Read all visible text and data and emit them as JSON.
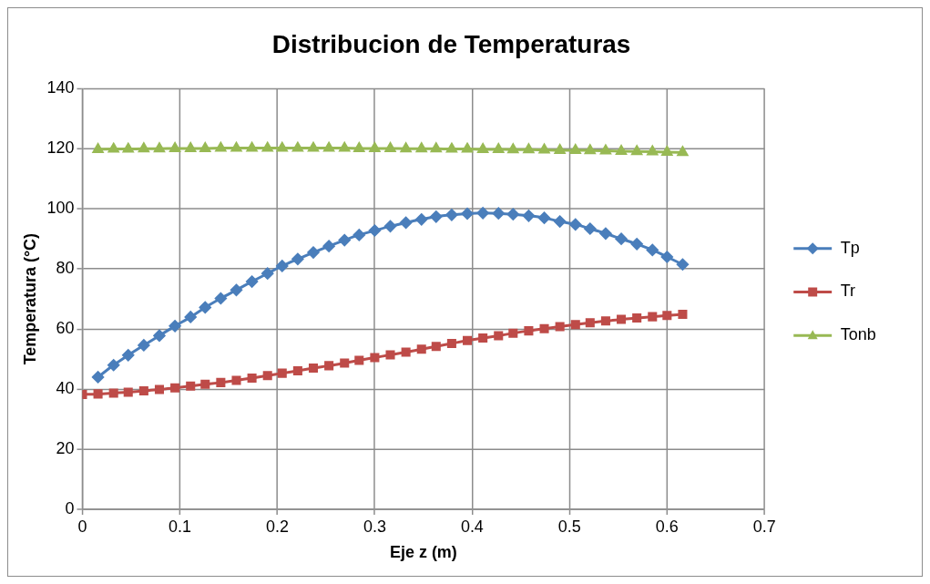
{
  "chart_data": {
    "type": "line",
    "title": "Distribucion de Temperaturas",
    "xlabel": "Eje z (m)",
    "ylabel": "Temperatura (°C)",
    "x": [
      0.016,
      0.032,
      0.047,
      0.063,
      0.079,
      0.095,
      0.111,
      0.126,
      0.142,
      0.158,
      0.174,
      0.19,
      0.205,
      0.221,
      0.237,
      0.253,
      0.269,
      0.284,
      0.3,
      0.316,
      0.332,
      0.348,
      0.363,
      0.379,
      0.395,
      0.411,
      0.427,
      0.442,
      0.458,
      0.474,
      0.49,
      0.506,
      0.521,
      0.537,
      0.553,
      0.569,
      0.585,
      0.6,
      0.616
    ],
    "series": [
      {
        "name": "Tp",
        "color": "#4a7ebb",
        "marker": "diamond",
        "values": [
          44,
          48,
          51.3,
          54.6,
          57.8,
          61,
          64,
          67.2,
          70.2,
          73,
          75.8,
          78.5,
          81,
          83.3,
          85.5,
          87.6,
          89.6,
          91.3,
          92.8,
          94.2,
          95.4,
          96.5,
          97.4,
          98,
          98.4,
          98.6,
          98.5,
          98.2,
          97.7,
          97,
          95.8,
          94.8,
          93.4,
          91.8,
          90,
          88.3,
          86.3,
          84,
          81.5
        ]
      },
      {
        "name": "Tr",
        "color": "#be4b48",
        "marker": "square",
        "x": [
          0,
          0.016,
          0.032,
          0.047,
          0.063,
          0.079,
          0.095,
          0.111,
          0.126,
          0.142,
          0.158,
          0.174,
          0.19,
          0.205,
          0.221,
          0.237,
          0.253,
          0.269,
          0.284,
          0.3,
          0.316,
          0.332,
          0.348,
          0.363,
          0.379,
          0.395,
          0.411,
          0.427,
          0.442,
          0.458,
          0.474,
          0.49,
          0.506,
          0.521,
          0.537,
          0.553,
          0.569,
          0.585,
          0.6,
          0.616
        ],
        "values": [
          38.2,
          38.4,
          38.7,
          39,
          39.4,
          39.9,
          40.4,
          41,
          41.6,
          42.2,
          42.9,
          43.7,
          44.5,
          45.3,
          46.1,
          47,
          47.8,
          48.7,
          49.6,
          50.5,
          51.4,
          52.3,
          53.3,
          54.2,
          55.2,
          56.2,
          57,
          57.8,
          58.6,
          59.4,
          60.1,
          60.8,
          61.5,
          62.1,
          62.7,
          63.2,
          63.7,
          64.1,
          64.5,
          64.9
        ]
      },
      {
        "name": "Tonb",
        "color": "#98b954",
        "marker": "triangle",
        "values": [
          119.8,
          119.9,
          119.9,
          120,
          120,
          120.1,
          120.1,
          120.1,
          120.2,
          120.2,
          120.2,
          120.2,
          120.2,
          120.2,
          120.2,
          120.2,
          120.2,
          120.1,
          120.1,
          120.1,
          120,
          120,
          120,
          119.9,
          119.9,
          119.8,
          119.8,
          119.7,
          119.7,
          119.6,
          119.5,
          119.5,
          119.4,
          119.3,
          119.2,
          119.1,
          119,
          118.9,
          118.8
        ]
      }
    ],
    "xlim": [
      0,
      0.7
    ],
    "xticks": [
      0,
      0.1,
      0.2,
      0.3,
      0.4,
      0.5,
      0.6,
      0.7
    ],
    "ylim": [
      0,
      140
    ],
    "yticks": [
      0,
      20,
      40,
      60,
      80,
      100,
      120,
      140
    ],
    "grid": true,
    "legend": "right"
  }
}
